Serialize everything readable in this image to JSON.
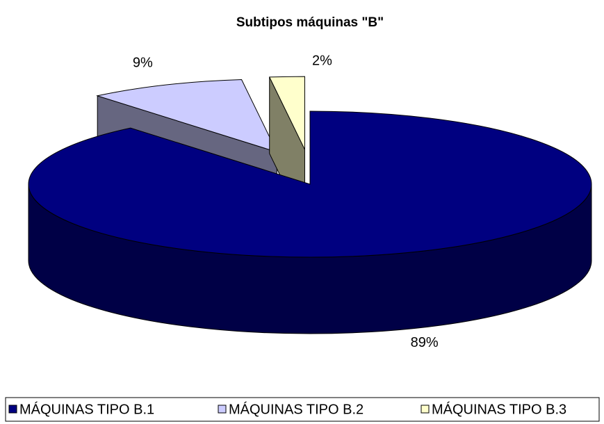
{
  "chart_data": {
    "type": "pie",
    "title": "Subtipos máquinas \"B\"",
    "categories": [
      "MÁQUINAS TIPO B.1",
      "MÁQUINAS TIPO B.2",
      "MÁQUINAS TIPO B.3"
    ],
    "values": [
      89,
      9,
      2
    ],
    "value_labels": [
      "89%",
      "9%",
      "2%"
    ],
    "colors": [
      "#000080",
      "#ccccff",
      "#ffffcc"
    ],
    "legend": "bottom"
  }
}
